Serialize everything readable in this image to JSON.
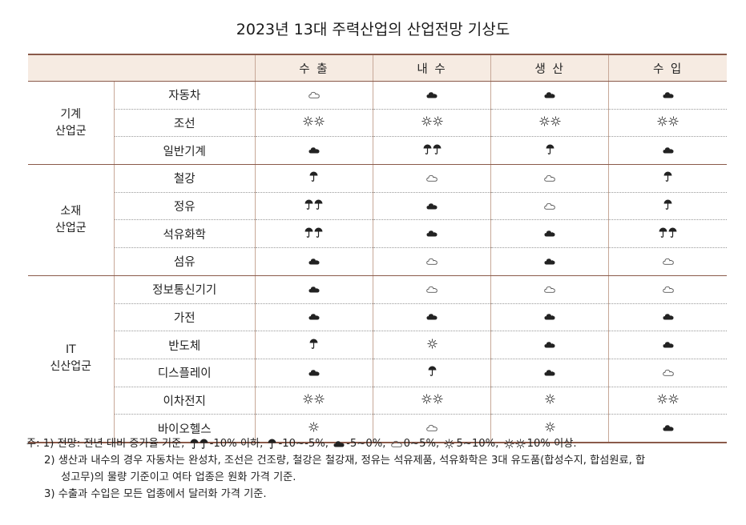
{
  "title": "2023년 13대 주력산업의 산업전망 기상도",
  "header": {
    "group_col": "",
    "industry_col": "",
    "columns": [
      "수 출",
      "내 수",
      "생 산",
      "수 입"
    ]
  },
  "icons": {
    "double_umbrella": "double-umbrella-icon",
    "umbrella": "umbrella-icon",
    "rain_cloud": "dark-cloud-icon",
    "cloud": "cloud-icon",
    "sun": "sun-icon",
    "double_sun": "double-sun-icon"
  },
  "groups": [
    {
      "name_line1": "기계",
      "name_line2": "산업군",
      "rows": [
        {
          "industry": "자동차",
          "values": [
            "cloud",
            "dark_cloud",
            "dark_cloud",
            "dark_cloud"
          ]
        },
        {
          "industry": "조선",
          "values": [
            "double_sun",
            "double_sun",
            "double_sun",
            "double_sun"
          ]
        },
        {
          "industry": "일반기계",
          "values": [
            "dark_cloud",
            "double_umbrella",
            "umbrella",
            "dark_cloud"
          ]
        }
      ]
    },
    {
      "name_line1": "소재",
      "name_line2": "산업군",
      "rows": [
        {
          "industry": "철강",
          "values": [
            "umbrella",
            "cloud",
            "cloud",
            "umbrella"
          ]
        },
        {
          "industry": "정유",
          "values": [
            "double_umbrella",
            "dark_cloud",
            "cloud",
            "umbrella"
          ]
        },
        {
          "industry": "석유화학",
          "values": [
            "double_umbrella",
            "dark_cloud",
            "dark_cloud",
            "double_umbrella"
          ]
        },
        {
          "industry": "섬유",
          "values": [
            "dark_cloud",
            "cloud",
            "dark_cloud",
            "cloud"
          ]
        }
      ]
    },
    {
      "name_line1": "IT",
      "name_line2": "신산업군",
      "rows": [
        {
          "industry": "정보통신기기",
          "values": [
            "dark_cloud",
            "cloud",
            "cloud",
            "cloud"
          ]
        },
        {
          "industry": "가전",
          "values": [
            "dark_cloud",
            "dark_cloud",
            "dark_cloud",
            "dark_cloud"
          ]
        },
        {
          "industry": "반도체",
          "values": [
            "umbrella",
            "sun",
            "dark_cloud",
            "dark_cloud"
          ]
        },
        {
          "industry": "디스플레이",
          "values": [
            "dark_cloud",
            "umbrella",
            "dark_cloud",
            "cloud"
          ]
        },
        {
          "industry": "이차전지",
          "values": [
            "double_sun",
            "double_sun",
            "sun",
            "double_sun"
          ]
        },
        {
          "industry": "바이오헬스",
          "values": [
            "sun",
            "cloud",
            "sun",
            "dark_cloud"
          ]
        }
      ]
    }
  ],
  "notes": {
    "note1_prefix": "주: 1) 전망: 전년 대비 증가율 기준,",
    "legend": [
      {
        "icon": "double_umbrella",
        "text": "-10% 이하,"
      },
      {
        "icon": "umbrella",
        "text": "-10~-5%,"
      },
      {
        "icon": "dark_cloud",
        "text": "-5~0%,"
      },
      {
        "icon": "cloud",
        "text": "0~5%,"
      },
      {
        "icon": "sun",
        "text": "5~10%,"
      },
      {
        "icon": "double_sun",
        "text": "10% 이상."
      }
    ],
    "note2_line1": "2) 생산과 내수의 경우 자동차는 완성차, 조선은 건조량, 철강은 철강재, 정유는 석유제품, 석유화학은 3대 유도품(합성수지, 합섬원료, 합",
    "note2_line2": "성고무)의 물량 기준이고 여타 업종은 원화 가격 기준.",
    "note3": "3) 수출과 수입은 모든 업종에서 달러화 가격 기준."
  }
}
